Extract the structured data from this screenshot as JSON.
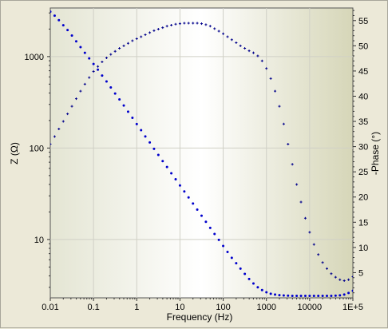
{
  "chart_data": {
    "type": "scatter",
    "xlabel": "Frequency (Hz)",
    "ylabel": "Z (Ω)",
    "y2label": "-Phase (°)",
    "xscale": "log",
    "yscale": "log",
    "xlim": [
      0.01,
      100000
    ],
    "ylim": [
      2.3,
      3400
    ],
    "y2lim": [
      0,
      57.5
    ],
    "x_ticks": [
      "0.01",
      "0.1",
      "1",
      "10",
      "100",
      "1000",
      "10000",
      "1E+5"
    ],
    "y_ticks": [
      "10",
      "100",
      "1000"
    ],
    "y2_ticks": [
      "5",
      "10",
      "15",
      "20",
      "25",
      "30",
      "35",
      "40",
      "45",
      "50",
      "55"
    ],
    "grid": true,
    "series": [
      {
        "axis": "left",
        "marker": "dot",
        "color": "#0000cc",
        "x": [
          0.01,
          0.0126,
          0.0158,
          0.02,
          0.0251,
          0.0316,
          0.0398,
          0.0501,
          0.0631,
          0.0794,
          0.1,
          0.126,
          0.158,
          0.2,
          0.251,
          0.316,
          0.398,
          0.501,
          0.631,
          0.794,
          1.0,
          1.26,
          1.58,
          2.0,
          2.51,
          3.16,
          3.98,
          5.01,
          6.31,
          7.94,
          10.0,
          12.6,
          15.8,
          20.0,
          25.1,
          31.6,
          39.8,
          50.1,
          63.1,
          79.4,
          100,
          126,
          158,
          200,
          251,
          316,
          398,
          501,
          631,
          794,
          1000,
          1259,
          1585,
          1995,
          2512,
          3162,
          3981,
          5012,
          6310,
          7943,
          10000,
          12589,
          15849,
          19953,
          25119,
          31623,
          39811,
          50119,
          63096,
          79433,
          100000
        ],
        "y": [
          3100,
          2800,
          2500,
          2200,
          1950,
          1700,
          1470,
          1270,
          1100,
          955,
          830,
          720,
          620,
          535,
          460,
          395,
          340,
          292,
          250,
          214,
          183,
          157,
          134,
          115,
          98,
          84,
          72,
          62,
          53,
          45.5,
          39,
          33.5,
          28.8,
          24.7,
          21.2,
          18.2,
          15.6,
          13.4,
          11.5,
          9.9,
          8.5,
          7.3,
          6.3,
          5.5,
          4.8,
          4.2,
          3.7,
          3.3,
          3.0,
          2.8,
          2.65,
          2.55,
          2.5,
          2.46,
          2.44,
          2.43,
          2.42,
          2.42,
          2.42,
          2.42,
          2.42,
          2.42,
          2.42,
          2.42,
          2.42,
          2.42,
          2.43,
          2.45,
          2.5,
          2.6,
          2.75
        ]
      },
      {
        "axis": "right",
        "marker": "plus",
        "color": "#00008b",
        "x": [
          0.01,
          0.0126,
          0.0158,
          0.02,
          0.0251,
          0.0316,
          0.0398,
          0.0501,
          0.0631,
          0.0794,
          0.1,
          0.126,
          0.158,
          0.2,
          0.251,
          0.316,
          0.398,
          0.501,
          0.631,
          0.794,
          1.0,
          1.26,
          1.58,
          2.0,
          2.51,
          3.16,
          3.98,
          5.01,
          6.31,
          7.94,
          10.0,
          12.6,
          15.8,
          20.0,
          25.1,
          31.6,
          39.8,
          50.1,
          63.1,
          79.4,
          100,
          126,
          158,
          200,
          251,
          316,
          398,
          501,
          631,
          794,
          1000,
          1259,
          1585,
          1995,
          2512,
          3162,
          3981,
          5012,
          6310,
          7943,
          10000,
          12589,
          15849,
          19953,
          25119,
          31623,
          39811,
          50119,
          63096,
          79433,
          100000
        ],
        "y": [
          30.5,
          32.0,
          33.5,
          35.0,
          36.5,
          38.0,
          39.5,
          41.0,
          42.4,
          43.7,
          44.9,
          45.9,
          46.8,
          47.6,
          48.3,
          48.9,
          49.5,
          50.0,
          50.5,
          51.0,
          51.4,
          51.8,
          52.2,
          52.6,
          53.0,
          53.3,
          53.6,
          53.9,
          54.1,
          54.3,
          54.4,
          54.5,
          54.5,
          54.5,
          54.5,
          54.4,
          54.2,
          53.9,
          53.4,
          52.9,
          52.4,
          51.8,
          51.2,
          50.6,
          50.0,
          49.5,
          49.0,
          48.6,
          48.0,
          47.0,
          45.5,
          43.5,
          41.0,
          38.0,
          34.5,
          30.5,
          26.5,
          22.5,
          19.0,
          15.8,
          13.0,
          10.6,
          8.6,
          7.0,
          5.8,
          4.8,
          4.1,
          3.6,
          3.4,
          3.6,
          4.2
        ]
      }
    ]
  }
}
